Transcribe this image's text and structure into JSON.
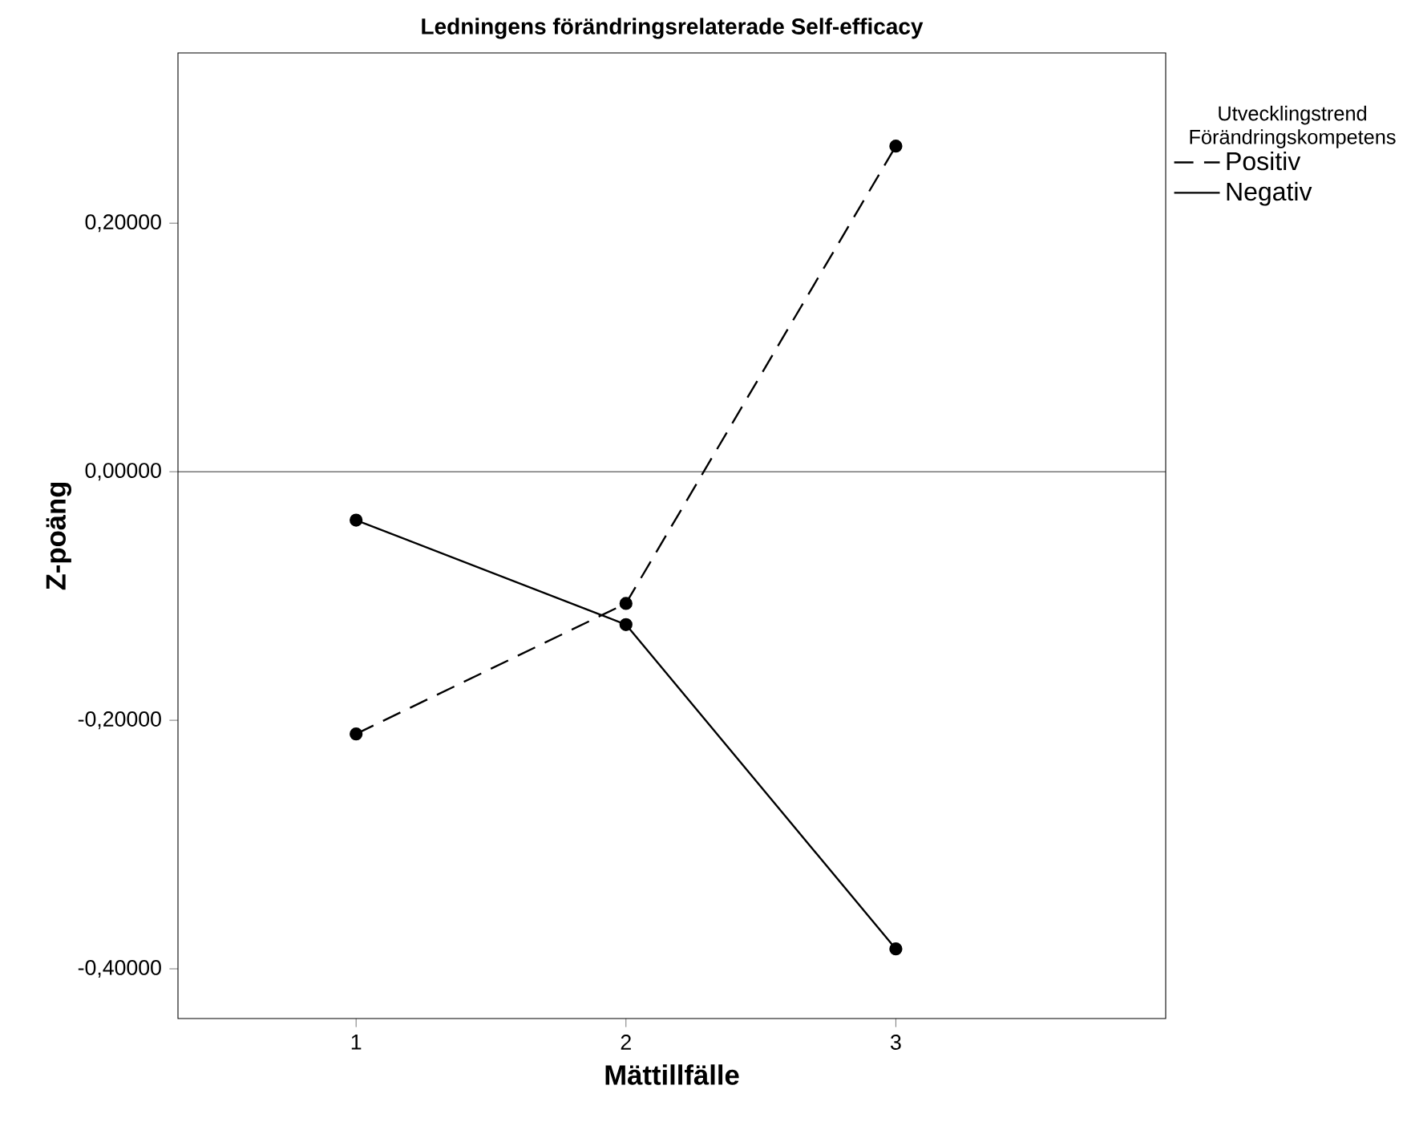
{
  "chart_data": {
    "type": "line",
    "title": "Ledningens förändringsrelaterade Self-efficacy",
    "xlabel": "Mättillfälle",
    "ylabel": "Z-poäng",
    "legend_title": "Utvecklingstrend Förändringskompetens",
    "x": [
      1,
      2,
      3
    ],
    "series": [
      {
        "name": "Positiv",
        "color": "#000000",
        "line_style": "dashed",
        "values": [
          -0.211,
          -0.106,
          0.262
        ]
      },
      {
        "name": "Negativ",
        "color": "#000000",
        "line_style": "solid",
        "values": [
          -0.039,
          -0.123,
          -0.384
        ]
      }
    ],
    "xlim": [
      0.34,
      4.0
    ],
    "ylim": [
      -0.44,
      0.337
    ],
    "xticks": [
      1,
      2,
      3
    ],
    "yticks": [
      {
        "value": -0.4,
        "label": "-0,40000"
      },
      {
        "value": -0.2,
        "label": "-0,20000"
      },
      {
        "value": 0,
        "label": "0,00000"
      },
      {
        "value": 0.2,
        "label": "0,20000"
      }
    ],
    "ref_lines": [
      {
        "axis": "y",
        "value": 0
      }
    ],
    "marker": "circle",
    "legend": "top right",
    "grid": false
  }
}
